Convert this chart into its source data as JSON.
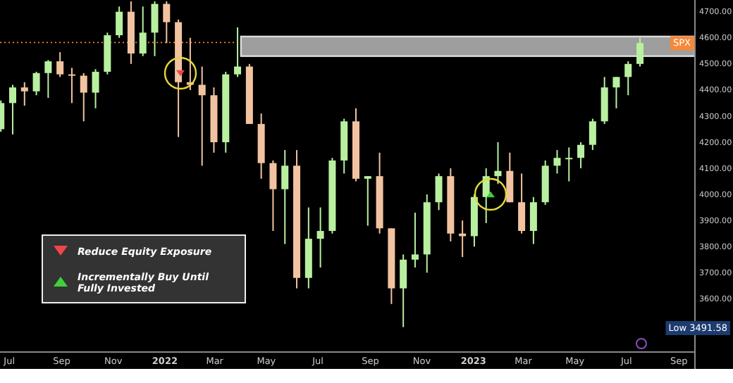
{
  "chart_data": {
    "type": "candlestick",
    "x": [
      "2021-06-21",
      "2021-07-05",
      "2021-07-19",
      "2021-08-02",
      "2021-08-16",
      "2021-08-30",
      "2021-09-13",
      "2021-09-27",
      "2021-10-11",
      "2021-10-25",
      "2021-11-08",
      "2021-11-22",
      "2021-12-06",
      "2021-12-20",
      "2022-01-03",
      "2022-01-17",
      "2022-01-31",
      "2022-02-14",
      "2022-02-28",
      "2022-03-14",
      "2022-03-28",
      "2022-04-11",
      "2022-04-25",
      "2022-05-09",
      "2022-05-23",
      "2022-06-06",
      "2022-06-20",
      "2022-07-04",
      "2022-07-18",
      "2022-08-01",
      "2022-08-15",
      "2022-08-29",
      "2022-09-12",
      "2022-09-26",
      "2022-10-10",
      "2022-10-24",
      "2022-11-07",
      "2022-11-21",
      "2022-12-05",
      "2022-12-19",
      "2023-01-02",
      "2023-01-16",
      "2023-01-30",
      "2023-02-13",
      "2023-02-27",
      "2023-03-13",
      "2023-03-27",
      "2023-04-10",
      "2023-04-24",
      "2023-05-08",
      "2023-05-22",
      "2023-06-05",
      "2023-06-19",
      "2023-07-03",
      "2023-07-17"
    ],
    "ohlc": [
      [
        4250,
        4360,
        4240,
        4350
      ],
      [
        4350,
        4420,
        4230,
        4410
      ],
      [
        4410,
        4430,
        4340,
        4395
      ],
      [
        4395,
        4470,
        4380,
        4465
      ],
      [
        4465,
        4515,
        4370,
        4510
      ],
      [
        4510,
        4545,
        4450,
        4460
      ],
      [
        4460,
        4485,
        4350,
        4455
      ],
      [
        4455,
        4465,
        4280,
        4390
      ],
      [
        4390,
        4480,
        4330,
        4470
      ],
      [
        4470,
        4620,
        4460,
        4610
      ],
      [
        4610,
        4720,
        4600,
        4700
      ],
      [
        4700,
        4740,
        4500,
        4540
      ],
      [
        4540,
        4720,
        4530,
        4620
      ],
      [
        4620,
        4740,
        4530,
        4730
      ],
      [
        4730,
        4740,
        4580,
        4660
      ],
      [
        4660,
        4670,
        4220,
        4430
      ],
      [
        4430,
        4600,
        4400,
        4420
      ],
      [
        4420,
        4490,
        4110,
        4380
      ],
      [
        4380,
        4410,
        4160,
        4200
      ],
      [
        4200,
        4470,
        4160,
        4460
      ],
      [
        4460,
        4640,
        4450,
        4490
      ],
      [
        4490,
        4500,
        4270,
        4270
      ],
      [
        4270,
        4310,
        4060,
        4120
      ],
      [
        4120,
        4130,
        3860,
        4020
      ],
      [
        4020,
        4170,
        3810,
        4110
      ],
      [
        4110,
        4170,
        3640,
        3680
      ],
      [
        3680,
        3950,
        3640,
        3830
      ],
      [
        3830,
        3950,
        3720,
        3860
      ],
      [
        3860,
        4140,
        3850,
        4130
      ],
      [
        4130,
        4290,
        4080,
        4280
      ],
      [
        4280,
        4330,
        4050,
        4060
      ],
      [
        4060,
        4070,
        3880,
        4070
      ],
      [
        4070,
        4160,
        3850,
        3870
      ],
      [
        3870,
        3870,
        3580,
        3640
      ],
      [
        3640,
        3770,
        3491.58,
        3750
      ],
      [
        3750,
        3930,
        3720,
        3770
      ],
      [
        3770,
        4000,
        3700,
        3970
      ],
      [
        3970,
        4080,
        3940,
        4070
      ],
      [
        4070,
        4100,
        3820,
        3850
      ],
      [
        3850,
        3900,
        3760,
        3840
      ],
      [
        3840,
        4000,
        3800,
        3990
      ],
      [
        3990,
        4100,
        3890,
        4070
      ],
      [
        4070,
        4200,
        4040,
        4090
      ],
      [
        4090,
        4160,
        3970,
        3970
      ],
      [
        3970,
        4080,
        3850,
        3860
      ],
      [
        3860,
        3990,
        3810,
        3970
      ],
      [
        3970,
        4130,
        3960,
        4110
      ],
      [
        4110,
        4170,
        4080,
        4140
      ],
      [
        4140,
        4180,
        4050,
        4140
      ],
      [
        4140,
        4200,
        4100,
        4190
      ],
      [
        4190,
        4290,
        4170,
        4280
      ],
      [
        4280,
        4450,
        4270,
        4410
      ],
      [
        4410,
        4450,
        4330,
        4450
      ],
      [
        4450,
        4510,
        4380,
        4500
      ],
      [
        4500,
        4600,
        4490,
        4580
      ]
    ],
    "xlim": [
      "2021-06-20",
      "2023-09-20"
    ],
    "xticks": [
      {
        "value": "2021-07-01",
        "label": "Jul"
      },
      {
        "value": "2021-09-01",
        "label": "Sep"
      },
      {
        "value": "2021-11-01",
        "label": "Nov"
      },
      {
        "value": "2022-01-01",
        "label": "2022"
      },
      {
        "value": "2022-03-01",
        "label": "Mar"
      },
      {
        "value": "2022-05-01",
        "label": "May"
      },
      {
        "value": "2022-07-01",
        "label": "Jul"
      },
      {
        "value": "2022-09-01",
        "label": "Sep"
      },
      {
        "value": "2022-11-01",
        "label": "Nov"
      },
      {
        "value": "2023-01-01",
        "label": "2023"
      },
      {
        "value": "2023-03-01",
        "label": "Mar"
      },
      {
        "value": "2023-05-01",
        "label": "May"
      },
      {
        "value": "2023-07-01",
        "label": "Jul"
      },
      {
        "value": "2023-09-01",
        "label": "Sep"
      }
    ],
    "ylim": [
      3396,
      4745
    ],
    "yticks": [
      {
        "value": 3600,
        "label": "3600.00"
      },
      {
        "value": 3700,
        "label": "3700.00"
      },
      {
        "value": 3800,
        "label": "3800.00"
      },
      {
        "value": 3900,
        "label": "3900.00"
      },
      {
        "value": 4000,
        "label": "4000.00"
      },
      {
        "value": 4100,
        "label": "4100.00"
      },
      {
        "value": 4200,
        "label": "4200.00"
      },
      {
        "value": 4300,
        "label": "4300.00"
      },
      {
        "value": 4400,
        "label": "4400.00"
      },
      {
        "value": 4500,
        "label": "4500.00"
      },
      {
        "value": 4600,
        "label": "4600.00"
      },
      {
        "value": 4700,
        "label": "4700.00"
      }
    ],
    "bands": [
      {
        "axis": "y",
        "from": 4530,
        "to": 4605,
        "color": "#9e9e9e"
      }
    ],
    "ref_lines": [
      {
        "axis": "y",
        "value": 4582,
        "label": "SPX",
        "color": "#f5883a",
        "line_style": "dotted"
      }
    ],
    "annotations": [
      "Reduce Equity Exposure",
      "Incrementally Buy Until Fully Invested",
      "Low 3491.58"
    ],
    "grid": false
  }
}
